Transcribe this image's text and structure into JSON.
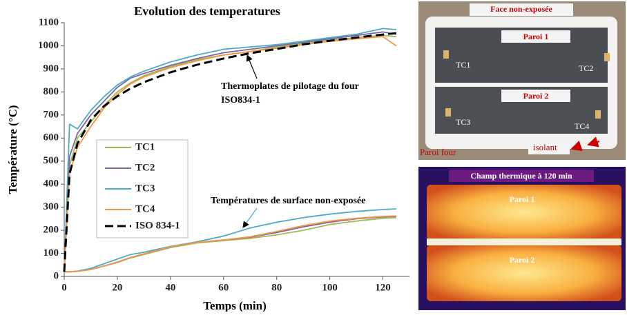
{
  "chart_data": {
    "type": "line",
    "title": "Evolution des temperatures",
    "x_label": "Temps (min)",
    "y_label": "Température (°C)",
    "x": [
      0,
      2,
      5,
      10,
      15,
      20,
      25,
      30,
      40,
      50,
      60,
      70,
      80,
      90,
      100,
      110,
      120,
      125
    ],
    "series": [
      {
        "name": "TC1",
        "color": "#9bbb59",
        "values": [
          20,
          20,
          22,
          30,
          45,
          60,
          80,
          95,
          125,
          145,
          155,
          165,
          180,
          200,
          225,
          240,
          252,
          255
        ],
        "furnace_values": [
          20,
          480,
          600,
          670,
          740,
          800,
          840,
          870,
          910,
          940,
          960,
          975,
          995,
          1010,
          1025,
          1035,
          1045,
          1040
        ]
      },
      {
        "name": "TC2",
        "color": "#8064a2",
        "values": [
          20,
          20,
          22,
          30,
          45,
          62,
          82,
          98,
          128,
          148,
          158,
          170,
          190,
          215,
          235,
          250,
          258,
          260
        ],
        "furnace_values": [
          20,
          520,
          620,
          700,
          760,
          820,
          860,
          880,
          915,
          945,
          970,
          985,
          1000,
          1015,
          1030,
          1045,
          1060,
          1050
        ]
      },
      {
        "name": "TC3",
        "color": "#4bacc6",
        "values": [
          20,
          20,
          23,
          35,
          55,
          75,
          95,
          105,
          130,
          150,
          175,
          210,
          235,
          255,
          270,
          282,
          290,
          293
        ],
        "furnace_values": [
          20,
          660,
          640,
          720,
          780,
          830,
          865,
          890,
          930,
          960,
          985,
          995,
          1005,
          1020,
          1035,
          1050,
          1075,
          1070
        ]
      },
      {
        "name": "TC4",
        "color": "#f79646",
        "values": [
          20,
          20,
          22,
          30,
          45,
          62,
          82,
          98,
          128,
          148,
          158,
          172,
          195,
          220,
          240,
          252,
          260,
          262
        ],
        "furnace_values": [
          20,
          450,
          560,
          650,
          730,
          790,
          835,
          865,
          905,
          935,
          960,
          975,
          990,
          1005,
          1020,
          1030,
          1040,
          1000
        ]
      },
      {
        "name": "ISO 834-1",
        "color": "#000000",
        "dashed": true,
        "values": [
          20,
          444,
          576,
          678,
          739,
          781,
          815,
          842,
          885,
          918,
          945,
          968,
          986,
          1006,
          1022,
          1036,
          1049,
          1055
        ]
      }
    ],
    "xlim": [
      0,
      130
    ],
    "xticks": [
      0,
      20,
      40,
      60,
      80,
      100,
      120
    ],
    "ylim": [
      0,
      1100
    ],
    "yticks": [
      0,
      100,
      200,
      300,
      400,
      500,
      600,
      700,
      800,
      900,
      1000,
      1100
    ],
    "grid": false,
    "annotations": [
      "Thermoplates de pilotage du four",
      "ISO834-1",
      "Températures de surface non-exposée"
    ]
  },
  "photo": {
    "title": "Face non-exposée",
    "labels": [
      "Paroi 1",
      "Paroi 2",
      "TC1",
      "TC2",
      "TC3",
      "TC4",
      "Paroi four",
      "isolant"
    ]
  },
  "thermal": {
    "title": "Champ thermique à 120 min",
    "labels": [
      "Paroi 1",
      "Paroi 2"
    ]
  }
}
